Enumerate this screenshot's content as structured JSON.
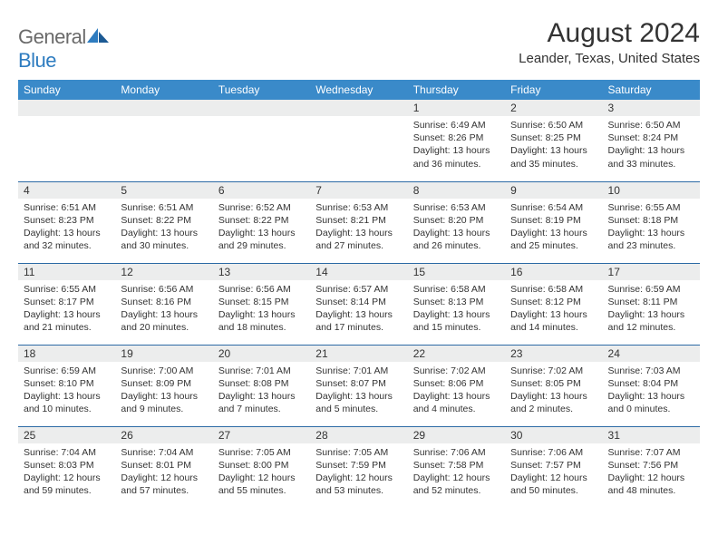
{
  "brand": {
    "part1": "General",
    "part2": "Blue"
  },
  "title": "August 2024",
  "location": "Leander, Texas, United States",
  "colors": {
    "header_bg": "#3a8ac9",
    "row_divider": "#2c6aa5",
    "daynum_bg": "#eceded",
    "text": "#333333",
    "brand_gray": "#6a6a6a",
    "brand_blue": "#2e7cc0",
    "page_bg": "#ffffff"
  },
  "weekdays": [
    "Sunday",
    "Monday",
    "Tuesday",
    "Wednesday",
    "Thursday",
    "Friday",
    "Saturday"
  ],
  "weeks": [
    [
      null,
      null,
      null,
      null,
      {
        "n": "1",
        "sr": "Sunrise: 6:49 AM",
        "ss": "Sunset: 8:26 PM",
        "d1": "Daylight: 13 hours",
        "d2": "and 36 minutes."
      },
      {
        "n": "2",
        "sr": "Sunrise: 6:50 AM",
        "ss": "Sunset: 8:25 PM",
        "d1": "Daylight: 13 hours",
        "d2": "and 35 minutes."
      },
      {
        "n": "3",
        "sr": "Sunrise: 6:50 AM",
        "ss": "Sunset: 8:24 PM",
        "d1": "Daylight: 13 hours",
        "d2": "and 33 minutes."
      }
    ],
    [
      {
        "n": "4",
        "sr": "Sunrise: 6:51 AM",
        "ss": "Sunset: 8:23 PM",
        "d1": "Daylight: 13 hours",
        "d2": "and 32 minutes."
      },
      {
        "n": "5",
        "sr": "Sunrise: 6:51 AM",
        "ss": "Sunset: 8:22 PM",
        "d1": "Daylight: 13 hours",
        "d2": "and 30 minutes."
      },
      {
        "n": "6",
        "sr": "Sunrise: 6:52 AM",
        "ss": "Sunset: 8:22 PM",
        "d1": "Daylight: 13 hours",
        "d2": "and 29 minutes."
      },
      {
        "n": "7",
        "sr": "Sunrise: 6:53 AM",
        "ss": "Sunset: 8:21 PM",
        "d1": "Daylight: 13 hours",
        "d2": "and 27 minutes."
      },
      {
        "n": "8",
        "sr": "Sunrise: 6:53 AM",
        "ss": "Sunset: 8:20 PM",
        "d1": "Daylight: 13 hours",
        "d2": "and 26 minutes."
      },
      {
        "n": "9",
        "sr": "Sunrise: 6:54 AM",
        "ss": "Sunset: 8:19 PM",
        "d1": "Daylight: 13 hours",
        "d2": "and 25 minutes."
      },
      {
        "n": "10",
        "sr": "Sunrise: 6:55 AM",
        "ss": "Sunset: 8:18 PM",
        "d1": "Daylight: 13 hours",
        "d2": "and 23 minutes."
      }
    ],
    [
      {
        "n": "11",
        "sr": "Sunrise: 6:55 AM",
        "ss": "Sunset: 8:17 PM",
        "d1": "Daylight: 13 hours",
        "d2": "and 21 minutes."
      },
      {
        "n": "12",
        "sr": "Sunrise: 6:56 AM",
        "ss": "Sunset: 8:16 PM",
        "d1": "Daylight: 13 hours",
        "d2": "and 20 minutes."
      },
      {
        "n": "13",
        "sr": "Sunrise: 6:56 AM",
        "ss": "Sunset: 8:15 PM",
        "d1": "Daylight: 13 hours",
        "d2": "and 18 minutes."
      },
      {
        "n": "14",
        "sr": "Sunrise: 6:57 AM",
        "ss": "Sunset: 8:14 PM",
        "d1": "Daylight: 13 hours",
        "d2": "and 17 minutes."
      },
      {
        "n": "15",
        "sr": "Sunrise: 6:58 AM",
        "ss": "Sunset: 8:13 PM",
        "d1": "Daylight: 13 hours",
        "d2": "and 15 minutes."
      },
      {
        "n": "16",
        "sr": "Sunrise: 6:58 AM",
        "ss": "Sunset: 8:12 PM",
        "d1": "Daylight: 13 hours",
        "d2": "and 14 minutes."
      },
      {
        "n": "17",
        "sr": "Sunrise: 6:59 AM",
        "ss": "Sunset: 8:11 PM",
        "d1": "Daylight: 13 hours",
        "d2": "and 12 minutes."
      }
    ],
    [
      {
        "n": "18",
        "sr": "Sunrise: 6:59 AM",
        "ss": "Sunset: 8:10 PM",
        "d1": "Daylight: 13 hours",
        "d2": "and 10 minutes."
      },
      {
        "n": "19",
        "sr": "Sunrise: 7:00 AM",
        "ss": "Sunset: 8:09 PM",
        "d1": "Daylight: 13 hours",
        "d2": "and 9 minutes."
      },
      {
        "n": "20",
        "sr": "Sunrise: 7:01 AM",
        "ss": "Sunset: 8:08 PM",
        "d1": "Daylight: 13 hours",
        "d2": "and 7 minutes."
      },
      {
        "n": "21",
        "sr": "Sunrise: 7:01 AM",
        "ss": "Sunset: 8:07 PM",
        "d1": "Daylight: 13 hours",
        "d2": "and 5 minutes."
      },
      {
        "n": "22",
        "sr": "Sunrise: 7:02 AM",
        "ss": "Sunset: 8:06 PM",
        "d1": "Daylight: 13 hours",
        "d2": "and 4 minutes."
      },
      {
        "n": "23",
        "sr": "Sunrise: 7:02 AM",
        "ss": "Sunset: 8:05 PM",
        "d1": "Daylight: 13 hours",
        "d2": "and 2 minutes."
      },
      {
        "n": "24",
        "sr": "Sunrise: 7:03 AM",
        "ss": "Sunset: 8:04 PM",
        "d1": "Daylight: 13 hours",
        "d2": "and 0 minutes."
      }
    ],
    [
      {
        "n": "25",
        "sr": "Sunrise: 7:04 AM",
        "ss": "Sunset: 8:03 PM",
        "d1": "Daylight: 12 hours",
        "d2": "and 59 minutes."
      },
      {
        "n": "26",
        "sr": "Sunrise: 7:04 AM",
        "ss": "Sunset: 8:01 PM",
        "d1": "Daylight: 12 hours",
        "d2": "and 57 minutes."
      },
      {
        "n": "27",
        "sr": "Sunrise: 7:05 AM",
        "ss": "Sunset: 8:00 PM",
        "d1": "Daylight: 12 hours",
        "d2": "and 55 minutes."
      },
      {
        "n": "28",
        "sr": "Sunrise: 7:05 AM",
        "ss": "Sunset: 7:59 PM",
        "d1": "Daylight: 12 hours",
        "d2": "and 53 minutes."
      },
      {
        "n": "29",
        "sr": "Sunrise: 7:06 AM",
        "ss": "Sunset: 7:58 PM",
        "d1": "Daylight: 12 hours",
        "d2": "and 52 minutes."
      },
      {
        "n": "30",
        "sr": "Sunrise: 7:06 AM",
        "ss": "Sunset: 7:57 PM",
        "d1": "Daylight: 12 hours",
        "d2": "and 50 minutes."
      },
      {
        "n": "31",
        "sr": "Sunrise: 7:07 AM",
        "ss": "Sunset: 7:56 PM",
        "d1": "Daylight: 12 hours",
        "d2": "and 48 minutes."
      }
    ]
  ]
}
